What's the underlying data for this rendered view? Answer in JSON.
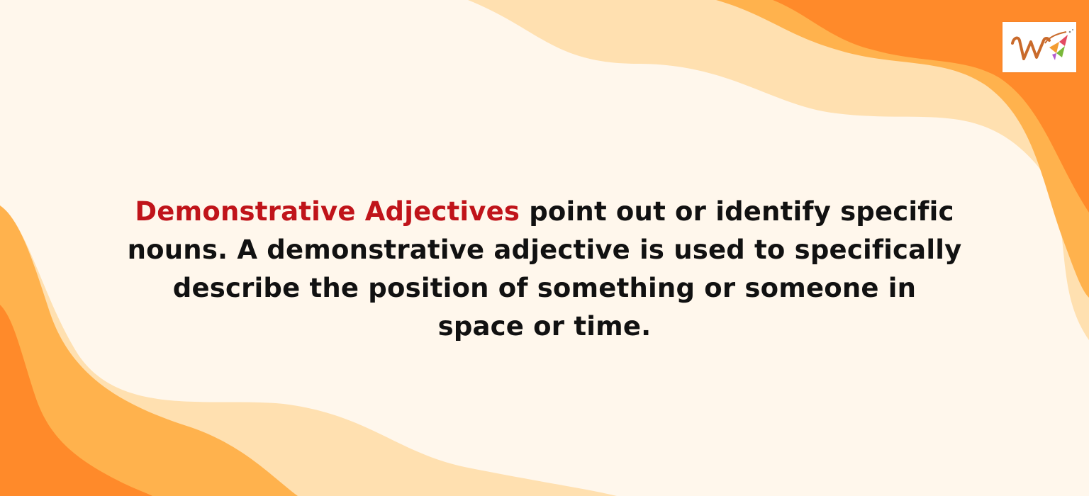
{
  "content": {
    "highlight": "Demonstrative Adjectives",
    "line1_rest": " point out or identify specific",
    "line2": "nouns. A demonstrative adjective is used to specifically",
    "line3": "describe the position of something or someone in",
    "line4": "space or time."
  },
  "logo": {
    "icon": "w-logo-icon"
  },
  "colors": {
    "background": "#fff7ec",
    "highlight": "#c0141a",
    "text": "#111111",
    "wave_dark": "#ff8a2a",
    "wave_mid": "#ffb24d",
    "wave_light": "#ffd59a"
  }
}
